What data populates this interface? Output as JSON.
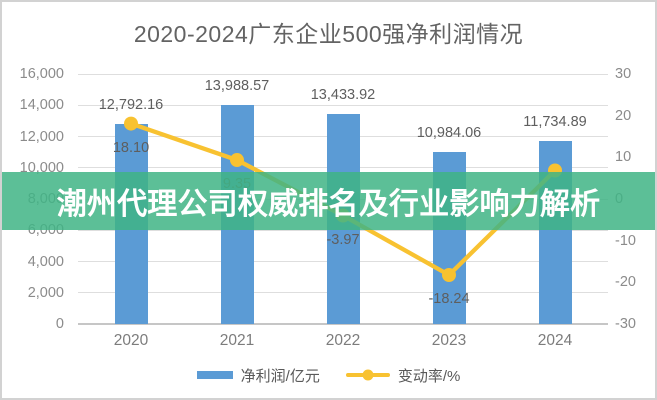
{
  "overlay_banner": {
    "text": "潮州代理公司权威排名及行业影响力解析",
    "bg": "#3FB485",
    "opacity": 0.85,
    "text_color": "#FFFFFF"
  },
  "chart_data": {
    "type": "combo",
    "title": "2020-2024广东企业500强净利润情况",
    "categories": [
      "2020",
      "2021",
      "2022",
      "2023",
      "2024"
    ],
    "series": [
      {
        "name": "净利润/亿元",
        "type": "bar",
        "axis": "left",
        "color": "#5B9BD5",
        "values": [
          12792.16,
          13988.57,
          13433.92,
          10984.06,
          11734.89
        ],
        "labels": [
          "12,792.16",
          "13,988.57",
          "13,433.92",
          "10,984.06",
          "11,734.89"
        ],
        "labels_visible": [
          true,
          true,
          true,
          true,
          true
        ]
      },
      {
        "name": "变动率/%",
        "type": "line",
        "axis": "right",
        "color": "#F8C231",
        "values": [
          18.1,
          9.35,
          -3.97,
          -18.24,
          6.84
        ],
        "labels": [
          "18.10",
          "9.35",
          "-3.97",
          "-18.24",
          "6.84"
        ],
        "labels_visible": [
          true,
          true,
          true,
          true,
          false
        ]
      }
    ],
    "left_axis": {
      "min": 0,
      "max": 16000,
      "step": 2000,
      "ticks": [
        "16,000",
        "14,000",
        "12,000",
        "10,000",
        "8,000",
        "6,000",
        "4,000",
        "2,000",
        "0"
      ]
    },
    "right_axis": {
      "min": -30,
      "max": 30,
      "step": 10,
      "ticks": [
        "30",
        "20",
        "10",
        "0",
        "-10",
        "-20",
        "-30"
      ]
    },
    "legend_position": "bottom",
    "grid": true,
    "colors": {
      "title_text": "#636363",
      "axis_label": "#8B8B8B",
      "data_label": "#5E5E5E",
      "gridline": "#DEDEDE",
      "axis_line": "#C6C6C6",
      "background": "#FFFFFF"
    }
  }
}
